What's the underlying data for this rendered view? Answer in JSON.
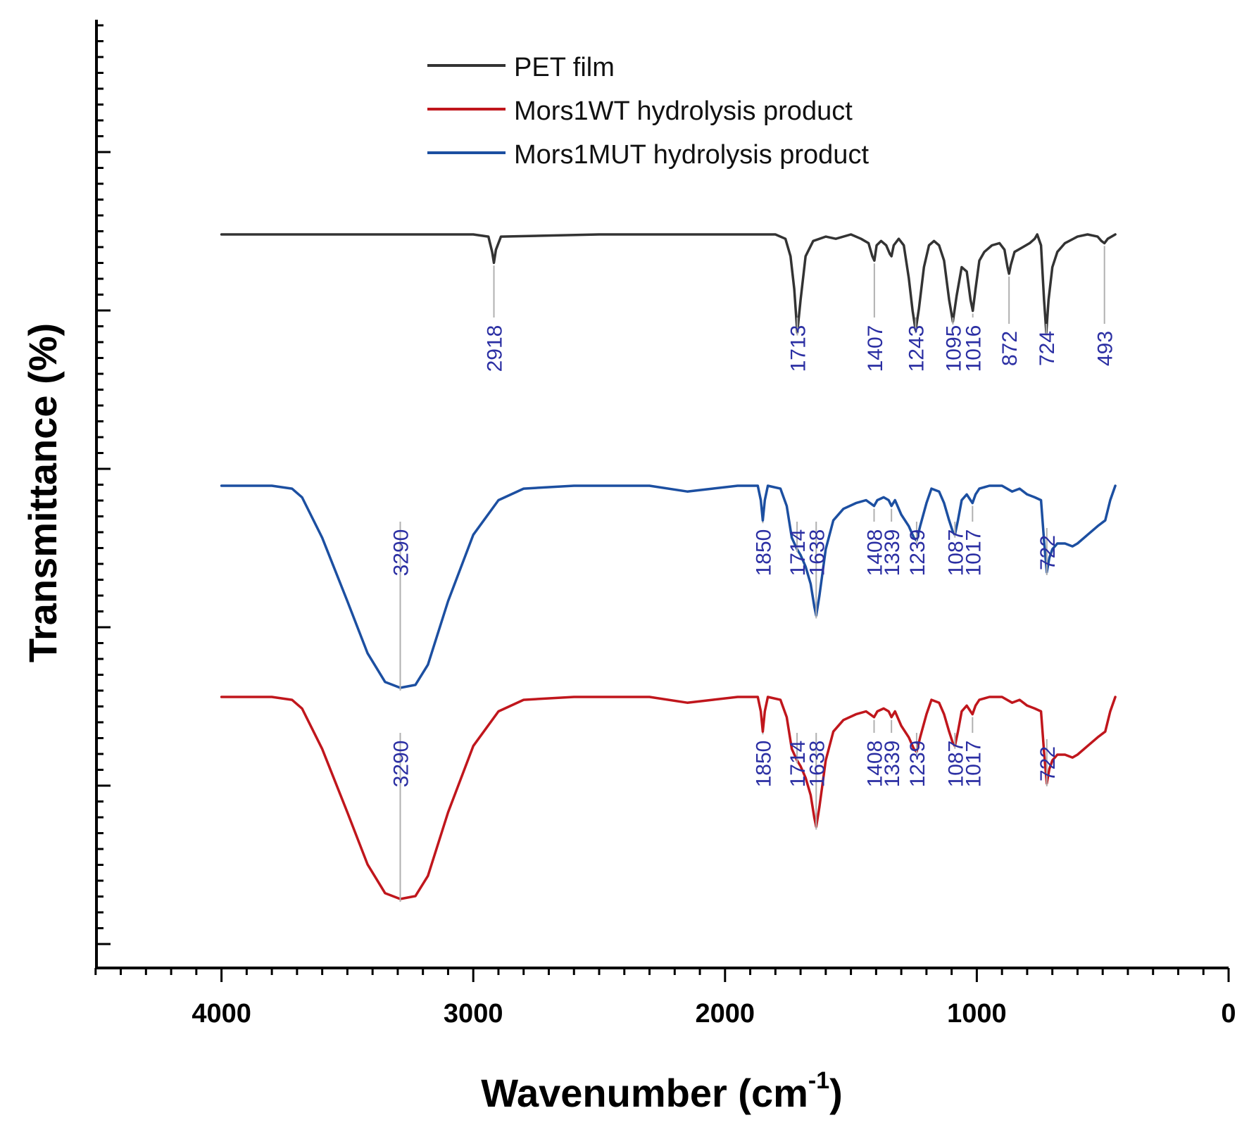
{
  "chart_data": {
    "type": "line",
    "xlabel": "Wavenumber (cm",
    "xlabel_sup": "-1",
    "xlabel_end": ")",
    "ylabel": "Transmittance (%)",
    "xlim": [
      4500,
      0
    ],
    "xticks": [
      "4000",
      "3000",
      "2000",
      "1000",
      "0"
    ],
    "legend_position": "top-center",
    "series": [
      {
        "name": "PET film",
        "color": "#333333",
        "points": [
          [
            4000,
            1.0
          ],
          [
            3500,
            1.0
          ],
          [
            3000,
            1.0
          ],
          [
            2940,
            0.99
          ],
          [
            2925,
            0.92
          ],
          [
            2918,
            0.87
          ],
          [
            2910,
            0.93
          ],
          [
            2890,
            0.99
          ],
          [
            2500,
            1.0
          ],
          [
            2000,
            1.0
          ],
          [
            1800,
            1.0
          ],
          [
            1760,
            0.98
          ],
          [
            1740,
            0.9
          ],
          [
            1725,
            0.75
          ],
          [
            1713,
            0.55
          ],
          [
            1700,
            0.7
          ],
          [
            1680,
            0.9
          ],
          [
            1650,
            0.97
          ],
          [
            1600,
            0.99
          ],
          [
            1560,
            0.98
          ],
          [
            1500,
            1.0
          ],
          [
            1460,
            0.98
          ],
          [
            1430,
            0.96
          ],
          [
            1415,
            0.9
          ],
          [
            1407,
            0.88
          ],
          [
            1398,
            0.95
          ],
          [
            1380,
            0.97
          ],
          [
            1360,
            0.95
          ],
          [
            1345,
            0.91
          ],
          [
            1339,
            0.9
          ],
          [
            1330,
            0.95
          ],
          [
            1310,
            0.98
          ],
          [
            1290,
            0.95
          ],
          [
            1270,
            0.8
          ],
          [
            1255,
            0.65
          ],
          [
            1243,
            0.56
          ],
          [
            1230,
            0.66
          ],
          [
            1210,
            0.85
          ],
          [
            1190,
            0.95
          ],
          [
            1170,
            0.97
          ],
          [
            1150,
            0.95
          ],
          [
            1130,
            0.88
          ],
          [
            1110,
            0.7
          ],
          [
            1095,
            0.6
          ],
          [
            1080,
            0.72
          ],
          [
            1060,
            0.85
          ],
          [
            1040,
            0.83
          ],
          [
            1025,
            0.7
          ],
          [
            1016,
            0.65
          ],
          [
            1005,
            0.75
          ],
          [
            990,
            0.88
          ],
          [
            970,
            0.92
          ],
          [
            940,
            0.95
          ],
          [
            910,
            0.96
          ],
          [
            890,
            0.93
          ],
          [
            878,
            0.85
          ],
          [
            872,
            0.82
          ],
          [
            865,
            0.86
          ],
          [
            850,
            0.92
          ],
          [
            820,
            0.94
          ],
          [
            790,
            0.96
          ],
          [
            770,
            0.98
          ],
          [
            760,
            1.0
          ],
          [
            745,
            0.95
          ],
          [
            733,
            0.7
          ],
          [
            724,
            0.55
          ],
          [
            715,
            0.7
          ],
          [
            700,
            0.85
          ],
          [
            680,
            0.92
          ],
          [
            650,
            0.96
          ],
          [
            600,
            0.99
          ],
          [
            560,
            1.0
          ],
          [
            520,
            0.99
          ],
          [
            505,
            0.97
          ],
          [
            493,
            0.96
          ],
          [
            480,
            0.98
          ],
          [
            450,
            1.0
          ]
        ]
      },
      {
        "name": "Mors1WT hydrolysis product",
        "color": "#c0161c",
        "points": [
          [
            4000,
            1.0
          ],
          [
            3800,
            1.0
          ],
          [
            3720,
            0.99
          ],
          [
            3680,
            0.96
          ],
          [
            3600,
            0.82
          ],
          [
            3500,
            0.6
          ],
          [
            3420,
            0.42
          ],
          [
            3350,
            0.32
          ],
          [
            3290,
            0.3
          ],
          [
            3230,
            0.31
          ],
          [
            3180,
            0.38
          ],
          [
            3100,
            0.6
          ],
          [
            3000,
            0.83
          ],
          [
            2900,
            0.95
          ],
          [
            2800,
            0.99
          ],
          [
            2600,
            1.0
          ],
          [
            2300,
            1.0
          ],
          [
            2150,
            0.98
          ],
          [
            2050,
            0.99
          ],
          [
            1950,
            1.0
          ],
          [
            1870,
            1.0
          ],
          [
            1858,
            0.95
          ],
          [
            1850,
            0.88
          ],
          [
            1842,
            0.95
          ],
          [
            1830,
            1.0
          ],
          [
            1780,
            0.99
          ],
          [
            1755,
            0.93
          ],
          [
            1735,
            0.82
          ],
          [
            1714,
            0.78
          ],
          [
            1700,
            0.76
          ],
          [
            1680,
            0.72
          ],
          [
            1660,
            0.66
          ],
          [
            1645,
            0.58
          ],
          [
            1638,
            0.55
          ],
          [
            1625,
            0.62
          ],
          [
            1600,
            0.78
          ],
          [
            1570,
            0.88
          ],
          [
            1530,
            0.92
          ],
          [
            1480,
            0.94
          ],
          [
            1440,
            0.95
          ],
          [
            1408,
            0.93
          ],
          [
            1395,
            0.95
          ],
          [
            1370,
            0.96
          ],
          [
            1350,
            0.95
          ],
          [
            1339,
            0.93
          ],
          [
            1325,
            0.95
          ],
          [
            1300,
            0.9
          ],
          [
            1270,
            0.86
          ],
          [
            1250,
            0.82
          ],
          [
            1239,
            0.81
          ],
          [
            1225,
            0.86
          ],
          [
            1200,
            0.94
          ],
          [
            1180,
            0.99
          ],
          [
            1150,
            0.98
          ],
          [
            1130,
            0.94
          ],
          [
            1110,
            0.88
          ],
          [
            1095,
            0.84
          ],
          [
            1087,
            0.83
          ],
          [
            1075,
            0.88
          ],
          [
            1060,
            0.95
          ],
          [
            1040,
            0.97
          ],
          [
            1025,
            0.95
          ],
          [
            1017,
            0.94
          ],
          [
            1005,
            0.97
          ],
          [
            990,
            0.99
          ],
          [
            950,
            1.0
          ],
          [
            900,
            1.0
          ],
          [
            860,
            0.98
          ],
          [
            830,
            0.99
          ],
          [
            800,
            0.97
          ],
          [
            770,
            0.96
          ],
          [
            745,
            0.95
          ],
          [
            732,
            0.8
          ],
          [
            722,
            0.7
          ],
          [
            712,
            0.75
          ],
          [
            700,
            0.78
          ],
          [
            680,
            0.8
          ],
          [
            650,
            0.8
          ],
          [
            620,
            0.79
          ],
          [
            600,
            0.8
          ],
          [
            560,
            0.83
          ],
          [
            520,
            0.86
          ],
          [
            490,
            0.88
          ],
          [
            470,
            0.95
          ],
          [
            450,
            1.0
          ]
        ]
      },
      {
        "name": "Mors1MUT hydrolysis product",
        "color": "#1c4fa1",
        "points": [
          [
            4000,
            1.0
          ],
          [
            3800,
            1.0
          ],
          [
            3720,
            0.99
          ],
          [
            3680,
            0.96
          ],
          [
            3600,
            0.82
          ],
          [
            3500,
            0.6
          ],
          [
            3420,
            0.42
          ],
          [
            3350,
            0.32
          ],
          [
            3290,
            0.3
          ],
          [
            3230,
            0.31
          ],
          [
            3180,
            0.38
          ],
          [
            3100,
            0.6
          ],
          [
            3000,
            0.83
          ],
          [
            2900,
            0.95
          ],
          [
            2800,
            0.99
          ],
          [
            2600,
            1.0
          ],
          [
            2300,
            1.0
          ],
          [
            2150,
            0.98
          ],
          [
            2050,
            0.99
          ],
          [
            1950,
            1.0
          ],
          [
            1870,
            1.0
          ],
          [
            1858,
            0.95
          ],
          [
            1850,
            0.88
          ],
          [
            1842,
            0.95
          ],
          [
            1830,
            1.0
          ],
          [
            1780,
            0.99
          ],
          [
            1755,
            0.93
          ],
          [
            1735,
            0.82
          ],
          [
            1714,
            0.78
          ],
          [
            1700,
            0.76
          ],
          [
            1680,
            0.72
          ],
          [
            1660,
            0.66
          ],
          [
            1645,
            0.58
          ],
          [
            1638,
            0.55
          ],
          [
            1625,
            0.62
          ],
          [
            1600,
            0.78
          ],
          [
            1570,
            0.88
          ],
          [
            1530,
            0.92
          ],
          [
            1480,
            0.94
          ],
          [
            1440,
            0.95
          ],
          [
            1408,
            0.93
          ],
          [
            1395,
            0.95
          ],
          [
            1370,
            0.96
          ],
          [
            1350,
            0.95
          ],
          [
            1339,
            0.93
          ],
          [
            1325,
            0.95
          ],
          [
            1300,
            0.9
          ],
          [
            1270,
            0.86
          ],
          [
            1250,
            0.82
          ],
          [
            1239,
            0.81
          ],
          [
            1225,
            0.86
          ],
          [
            1200,
            0.94
          ],
          [
            1180,
            0.99
          ],
          [
            1150,
            0.98
          ],
          [
            1130,
            0.94
          ],
          [
            1110,
            0.88
          ],
          [
            1095,
            0.84
          ],
          [
            1087,
            0.83
          ],
          [
            1075,
            0.88
          ],
          [
            1060,
            0.95
          ],
          [
            1040,
            0.97
          ],
          [
            1025,
            0.95
          ],
          [
            1017,
            0.94
          ],
          [
            1005,
            0.97
          ],
          [
            990,
            0.99
          ],
          [
            950,
            1.0
          ],
          [
            900,
            1.0
          ],
          [
            860,
            0.98
          ],
          [
            830,
            0.99
          ],
          [
            800,
            0.97
          ],
          [
            770,
            0.96
          ],
          [
            745,
            0.95
          ],
          [
            732,
            0.8
          ],
          [
            722,
            0.7
          ],
          [
            712,
            0.75
          ],
          [
            700,
            0.78
          ],
          [
            680,
            0.8
          ],
          [
            650,
            0.8
          ],
          [
            620,
            0.79
          ],
          [
            600,
            0.8
          ],
          [
            560,
            0.83
          ],
          [
            520,
            0.86
          ],
          [
            490,
            0.88
          ],
          [
            470,
            0.95
          ],
          [
            450,
            1.0
          ]
        ]
      }
    ],
    "peak_labels": {
      "PET film": [
        "2918",
        "1713",
        "1407",
        "1243",
        "1095",
        "1016",
        "872",
        "724",
        "493"
      ],
      "Mors1MUT hydrolysis product": [
        "3290",
        "1850",
        "1714",
        "1638",
        "1408",
        "1339",
        "1239",
        "1087",
        "1017",
        "722"
      ],
      "Mors1WT hydrolysis product": [
        "3290",
        "1850",
        "1714",
        "1638",
        "1408",
        "1339",
        "1239",
        "1087",
        "1017",
        "722"
      ]
    },
    "peak_label_color": "#2b2fa3"
  }
}
